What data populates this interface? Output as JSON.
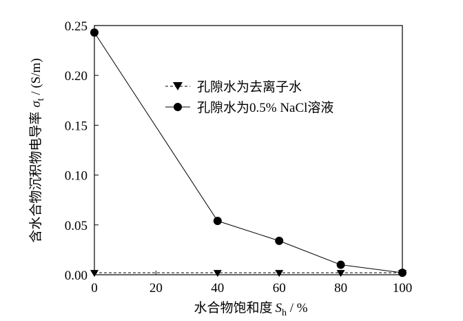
{
  "chart_data": {
    "type": "line",
    "xlabel": "水合物饱和度",
    "xlabel_symbol": "S",
    "xlabel_sub": "h",
    "xlabel_unit": " / %",
    "ylabel": "含水合物沉积物电导率",
    "ylabel_symbol": "σ",
    "ylabel_sub": "t",
    "ylabel_unit": " / (S/m)",
    "xlim": [
      0,
      100
    ],
    "ylim": [
      0,
      0.25
    ],
    "x_ticks": [
      0,
      20,
      40,
      60,
      80,
      100
    ],
    "y_ticks": [
      "0.00",
      "0.05",
      "0.10",
      "0.15",
      "0.20",
      "0.25"
    ],
    "grid": false,
    "legend_position": "top-right",
    "series": [
      {
        "name": "孔隙水为去离子水",
        "marker": "triangle-down",
        "line_style": "dashed",
        "color": "#000000",
        "x": [
          0,
          40,
          60,
          80,
          100
        ],
        "y": [
          0.002,
          0.002,
          0.002,
          0.002,
          0.002
        ]
      },
      {
        "name": "孔隙水为0.5% NaCl溶液",
        "marker": "circle",
        "line_style": "solid",
        "color": "#000000",
        "x": [
          0,
          40,
          60,
          80,
          100
        ],
        "y": [
          0.243,
          0.054,
          0.034,
          0.01,
          0.002
        ]
      }
    ]
  }
}
